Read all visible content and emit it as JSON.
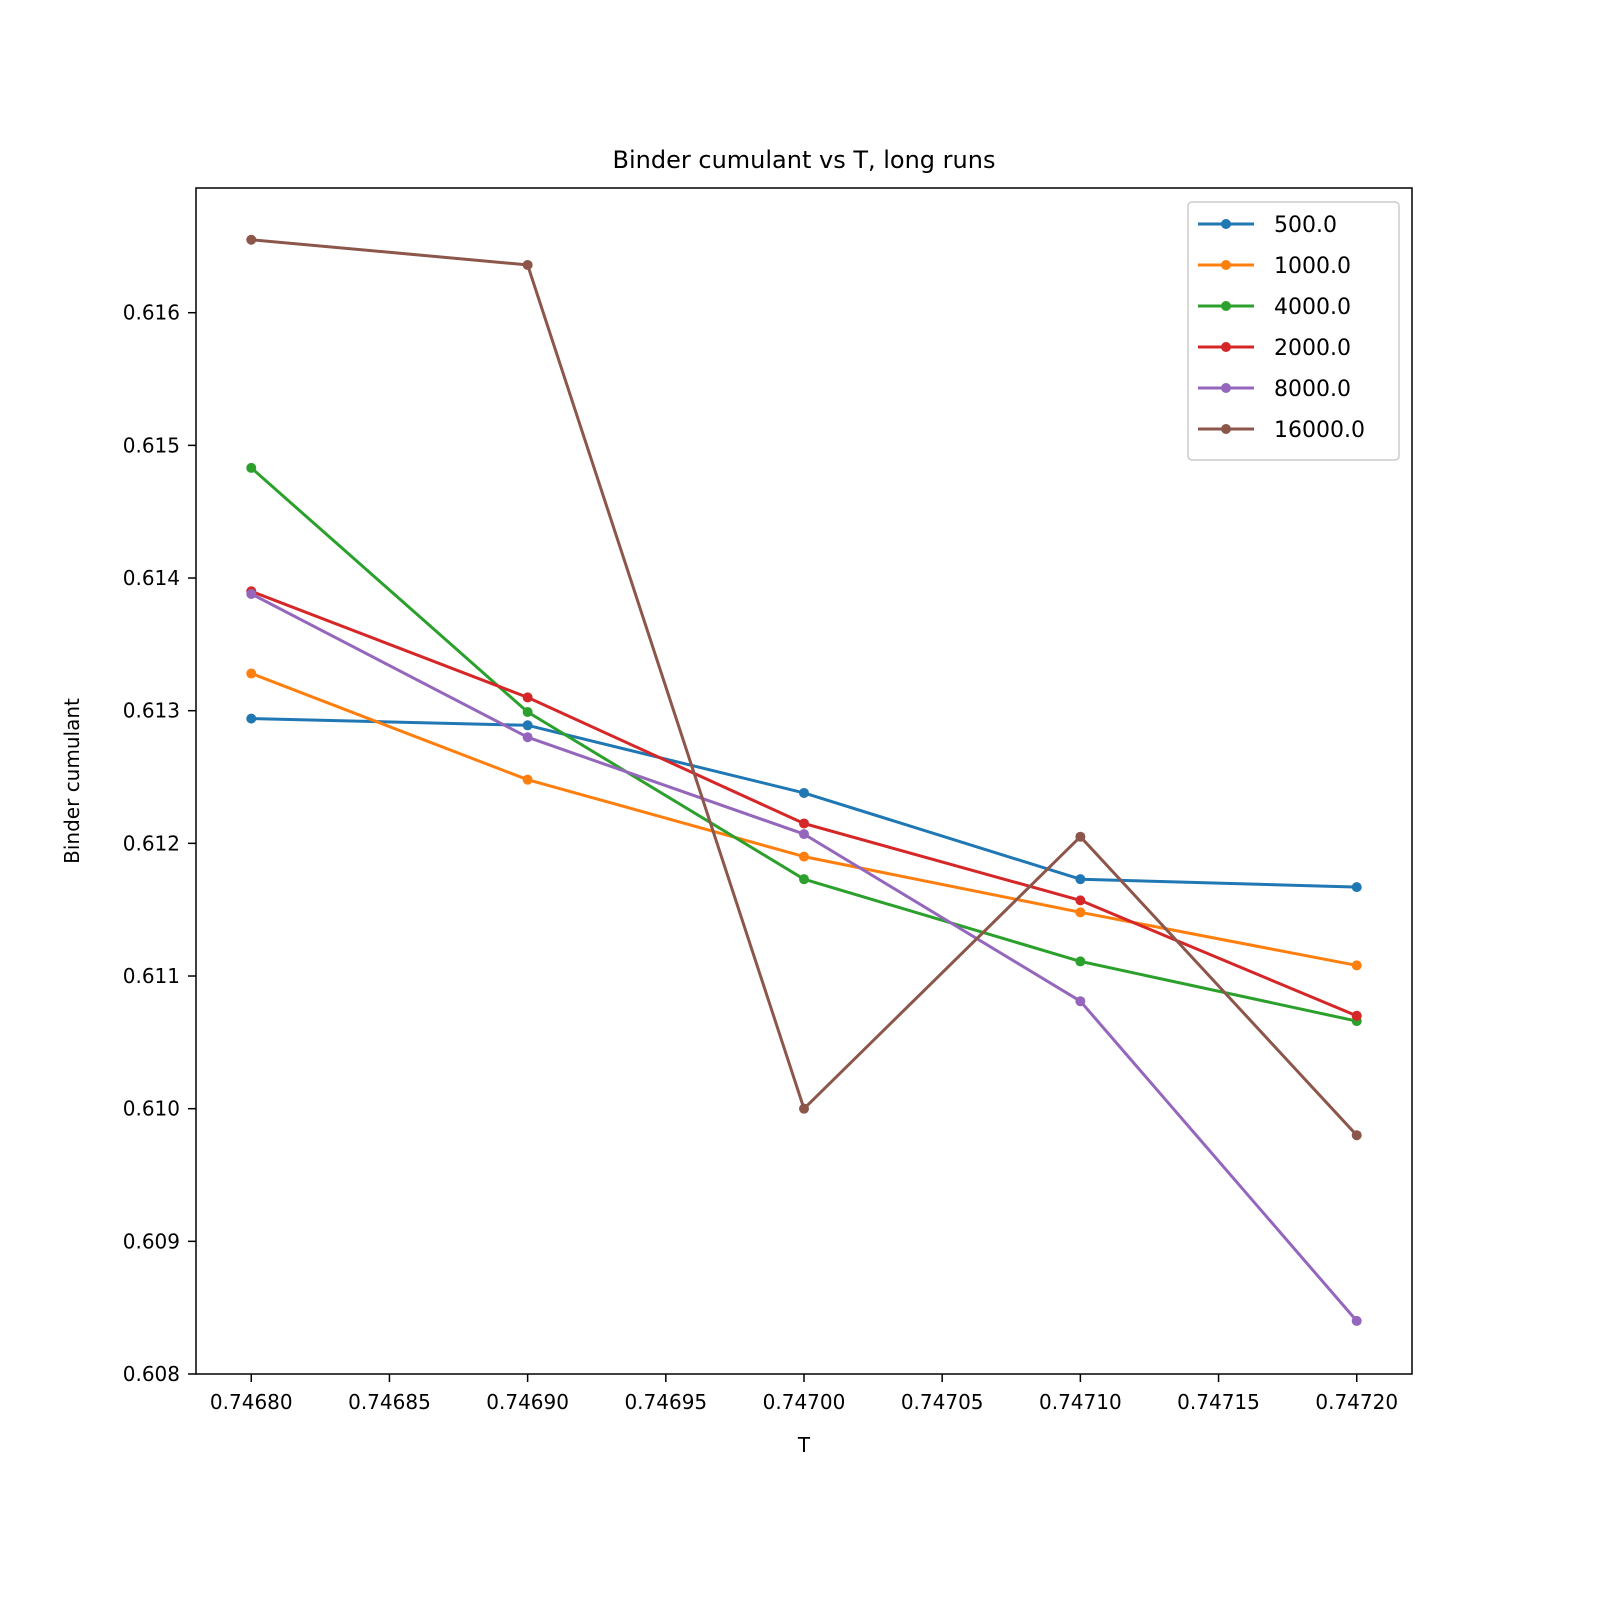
{
  "chart_data": {
    "type": "line",
    "title": "Binder cumulant vs T, long runs",
    "xlabel": "T",
    "ylabel": "Binder cumulant",
    "x": [
      0.7468,
      0.7469,
      0.747,
      0.7471,
      0.7472
    ],
    "xlim": [
      0.74678,
      0.74722
    ],
    "ylim": [
      0.608,
      0.61694
    ],
    "xticks": [
      0.7468,
      0.74685,
      0.7469,
      0.74695,
      0.747,
      0.74705,
      0.7471,
      0.74715,
      0.7472
    ],
    "xtick_labels": [
      "0.74680",
      "0.74685",
      "0.74690",
      "0.74695",
      "0.74700",
      "0.74705",
      "0.74710",
      "0.74715",
      "0.74720"
    ],
    "yticks": [
      0.608,
      0.609,
      0.61,
      0.611,
      0.612,
      0.613,
      0.614,
      0.615,
      0.616
    ],
    "ytick_labels": [
      "0.608",
      "0.609",
      "0.610",
      "0.611",
      "0.612",
      "0.613",
      "0.614",
      "0.615",
      "0.616"
    ],
    "grid": false,
    "legend_position": "top-right",
    "series": [
      {
        "name": "500.0",
        "color": "#1f77b4",
        "values": [
          0.61294,
          0.61289,
          0.61238,
          0.61173,
          0.61167
        ]
      },
      {
        "name": "1000.0",
        "color": "#ff7f0e",
        "values": [
          0.61328,
          0.61248,
          0.6119,
          0.61148,
          0.61108
        ]
      },
      {
        "name": "4000.0",
        "color": "#2ca02c",
        "values": [
          0.61483,
          0.61299,
          0.61173,
          0.61111,
          0.61066
        ]
      },
      {
        "name": "2000.0",
        "color": "#d62728",
        "values": [
          0.6139,
          0.6131,
          0.61215,
          0.61157,
          0.6107
        ]
      },
      {
        "name": "8000.0",
        "color": "#9467bd",
        "values": [
          0.61388,
          0.6128,
          0.61207,
          0.61081,
          0.6084
        ]
      },
      {
        "name": "16000.0",
        "color": "#8c564b",
        "values": [
          0.61655,
          0.61636,
          0.61,
          0.61205,
          0.6098
        ]
      }
    ]
  }
}
